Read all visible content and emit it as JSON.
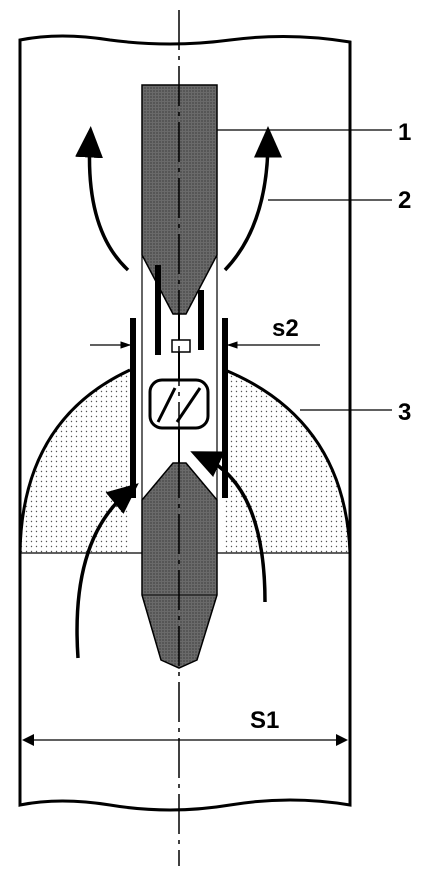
{
  "labels": {
    "part_1": "1",
    "part_2": "2",
    "part_3": "3",
    "gap_small": "s2",
    "width_large": "S1"
  },
  "colors": {
    "line": "#000000",
    "rod_fill": "#555555",
    "mound_fill": "#e6e6e6",
    "background": "#ffffff"
  }
}
